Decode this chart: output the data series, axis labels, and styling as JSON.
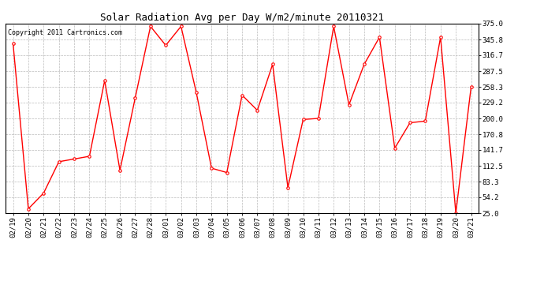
{
  "title": "Solar Radiation Avg per Day W/m2/minute 20110321",
  "copyright_text": "Copyright 2011 Cartronics.com",
  "dates": [
    "02/19",
    "02/20",
    "02/21",
    "02/22",
    "02/23",
    "02/24",
    "02/25",
    "02/26",
    "02/27",
    "02/28",
    "03/01",
    "03/02",
    "03/03",
    "03/04",
    "03/05",
    "03/06",
    "03/07",
    "03/08",
    "03/09",
    "03/10",
    "03/11",
    "03/12",
    "03/13",
    "03/14",
    "03/15",
    "03/16",
    "03/17",
    "03/18",
    "03/19",
    "03/20",
    "03/21"
  ],
  "values": [
    338.0,
    33.0,
    62.0,
    120.0,
    125.0,
    130.0,
    270.0,
    104.0,
    238.0,
    370.0,
    335.0,
    370.0,
    248.0,
    108.0,
    100.0,
    243.0,
    215.0,
    300.0,
    72.0,
    198.0,
    200.0,
    370.0,
    225.0,
    300.0,
    350.0,
    145.0,
    192.0,
    195.0,
    350.0,
    25.0,
    258.0
  ],
  "ylim": [
    25.0,
    375.0
  ],
  "yticks": [
    25.0,
    54.2,
    83.3,
    112.5,
    141.7,
    170.8,
    200.0,
    229.2,
    258.3,
    287.5,
    316.7,
    345.8,
    375.0
  ],
  "line_color": "#ff0000",
  "marker_size": 2.5,
  "bg_color": "#ffffff",
  "grid_color": "#bbbbbb",
  "title_fontsize": 9,
  "copyright_fontsize": 6,
  "tick_fontsize": 6.5
}
